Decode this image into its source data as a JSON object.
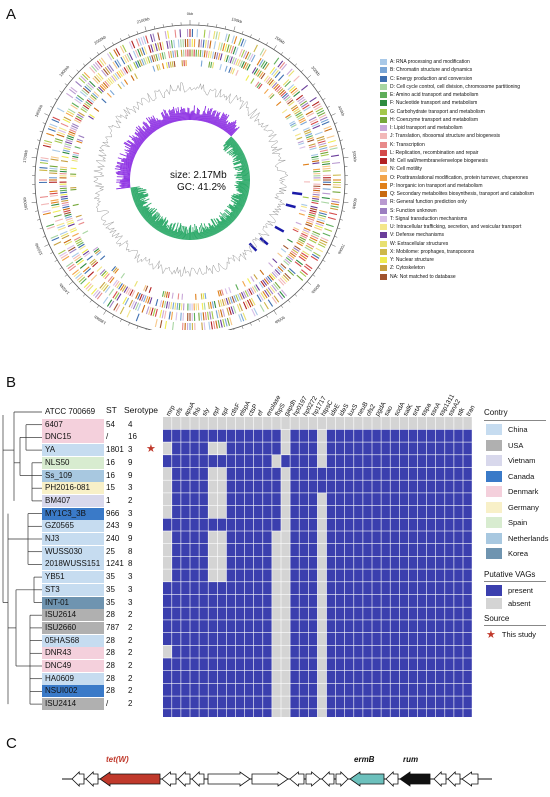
{
  "panels": {
    "a": "A",
    "b": "B",
    "c": "C"
  },
  "genome": {
    "size_text": "size: 2.17Mb",
    "gc_text": "GC: 41.2%",
    "outer_scale_labels": [
      "0kb",
      "100kb",
      "200kb",
      "300kb",
      "400kb",
      "500kb",
      "600kb",
      "700kb",
      "800kb",
      "900kb",
      "1000kb",
      "1100kb",
      "1200kb",
      "1300kb",
      "1400kb",
      "1500kb",
      "1600kb",
      "1700kb",
      "1800kb",
      "1900kb",
      "2000kb",
      "2100kb"
    ],
    "gc_skew_positive_color": "#8a2be2",
    "gc_skew_negative_color": "#2eaa6a"
  },
  "cog_legend": [
    {
      "label": "A: RNA processing and modification",
      "color": "#a9c9e8"
    },
    {
      "label": "B: Chromatin structure and dynamics",
      "color": "#7aa6d6"
    },
    {
      "label": "C: Energy production and conversion",
      "color": "#3e6fb0"
    },
    {
      "label": "D: Cell cycle control, cell division, chromosome partitioning",
      "color": "#a8d5a2"
    },
    {
      "label": "E: Amino acid transport and metabolism",
      "color": "#5fae5a"
    },
    {
      "label": "F: Nucleotide transport and metabolism",
      "color": "#2e8b3e"
    },
    {
      "label": "G: Carbohydrate transport and metabolism",
      "color": "#a4c84a"
    },
    {
      "label": "H: Coenzyme transport and metabolism",
      "color": "#76a83a"
    },
    {
      "label": "I: Lipid transport and metabolism",
      "color": "#c9a8d8"
    },
    {
      "label": "J: Translation, ribosomal structure and biogenesis",
      "color": "#f2b8b8"
    },
    {
      "label": "K: Transcription",
      "color": "#e88a8a"
    },
    {
      "label": "L: Replication, recombination and repair",
      "color": "#d44a4a"
    },
    {
      "label": "M: Cell wall/membrane/envelope biogenesis",
      "color": "#b22222"
    },
    {
      "label": "N: Cell motility",
      "color": "#f7c88a"
    },
    {
      "label": "O: Posttranslational modification, protein turnover, chaperones",
      "color": "#f2a44a"
    },
    {
      "label": "P: Inorganic ion transport and metabolism",
      "color": "#e0801a"
    },
    {
      "label": "Q: Secondary metabolites biosynthesis, transport and catabolism",
      "color": "#c96a10"
    },
    {
      "label": "R: General function prediction only",
      "color": "#b99ad0"
    },
    {
      "label": "S: Function unknown",
      "color": "#9b7dc0"
    },
    {
      "label": "T: Signal transduction mechanisms",
      "color": "#d8c0e8"
    },
    {
      "label": "U: Intracellular trafficking, secretion, and vesicular transport",
      "color": "#f4e68a"
    },
    {
      "label": "V: Defense mechanisms",
      "color": "#6a3d9a"
    },
    {
      "label": "W: Extracellular structures",
      "color": "#e8e070"
    },
    {
      "label": "X: Mobilome: prophages, transposons",
      "color": "#cdb84a"
    },
    {
      "label": "Y: Nuclear structure",
      "color": "#f0ec50"
    },
    {
      "label": "Z: Cytoskeleton",
      "color": "#c8a040"
    },
    {
      "label": "NA: Not matched to database",
      "color": "#a0522d"
    }
  ],
  "vag_table": {
    "headers": {
      "st": "ST",
      "serotype": "Serotype"
    },
    "genes": [
      "mrp",
      "ofs",
      "apuA",
      "fhb",
      "sly",
      "epf",
      "spl",
      "ctlsF",
      "elspA",
      "ctsP",
      "ef",
      "enolase",
      "fbpS",
      "gapdh",
      "hp0197",
      "hp0272",
      "hp1717",
      "htpsC",
      "ideE",
      "ideS",
      "luxS",
      "neuB",
      "ofs2",
      "pgdA",
      "sao",
      "sodA",
      "salK",
      "srtA",
      "sspa",
      "ssnA",
      "ssp1311",
      "ssnA2",
      "stk",
      "tran"
    ],
    "strains": [
      {
        "name": "ATCC 700669",
        "st": "",
        "serotype": "",
        "country": "",
        "star": false,
        "reference": true
      },
      {
        "name": "6407",
        "st": "54",
        "serotype": "4",
        "country": "Denmark",
        "star": false
      },
      {
        "name": "DNC15",
        "st": "/",
        "serotype": "16",
        "country": "Denmark",
        "star": false
      },
      {
        "name": "YA",
        "st": "1801",
        "serotype": "3",
        "country": "China",
        "star": true
      },
      {
        "name": "NLS50",
        "st": "16",
        "serotype": "9",
        "country": "Spain",
        "star": false
      },
      {
        "name": "Ss_109",
        "st": "16",
        "serotype": "9",
        "country": "Netherlands",
        "star": false
      },
      {
        "name": "PH2016-081",
        "st": "15",
        "serotype": "3",
        "country": "Germany",
        "star": false
      },
      {
        "name": "BM407",
        "st": "1",
        "serotype": "2",
        "country": "Vietnam",
        "star": false
      },
      {
        "name": "MY1C3_3B",
        "st": "966",
        "serotype": "3",
        "country": "Canada",
        "star": false
      },
      {
        "name": "GZ0565",
        "st": "243",
        "serotype": "9",
        "country": "China",
        "star": false
      },
      {
        "name": "NJ3",
        "st": "240",
        "serotype": "9",
        "country": "China",
        "star": false
      },
      {
        "name": "WUSS030",
        "st": "25",
        "serotype": "8",
        "country": "China",
        "star": false
      },
      {
        "name": "2018WUSS151",
        "st": "1241",
        "serotype": "8",
        "country": "China",
        "star": false
      },
      {
        "name": "YB51",
        "st": "35",
        "serotype": "3",
        "country": "China",
        "star": false
      },
      {
        "name": "ST3",
        "st": "35",
        "serotype": "3",
        "country": "China",
        "star": false
      },
      {
        "name": "INT-01",
        "st": "35",
        "serotype": "3",
        "country": "Korea",
        "star": false
      },
      {
        "name": "ISU2614",
        "st": "28",
        "serotype": "2",
        "country": "USA",
        "star": false
      },
      {
        "name": "ISU2660",
        "st": "787",
        "serotype": "2",
        "country": "USA",
        "star": false
      },
      {
        "name": "05HAS68",
        "st": "28",
        "serotype": "2",
        "country": "China",
        "star": false
      },
      {
        "name": "DNR43",
        "st": "28",
        "serotype": "2",
        "country": "Denmark",
        "star": false
      },
      {
        "name": "DNC49",
        "st": "28",
        "serotype": "2",
        "country": "Denmark",
        "star": false
      },
      {
        "name": "HA0609",
        "st": "28",
        "serotype": "2",
        "country": "China",
        "star": false
      },
      {
        "name": "NSUI002",
        "st": "28",
        "serotype": "2",
        "country": "Canada",
        "star": false
      },
      {
        "name": "ISU2414",
        "st": "/",
        "serotype": "2",
        "country": "USA",
        "star": false
      }
    ],
    "matrix": [
      "0000000000000000000000000000000000",
      "1111111111111011101111111111111111",
      "0111100111111011101111111111111111",
      "1111111111110111101111111111111111",
      "0111100111111011111111111111111111",
      "0111100111111011111111111111111111",
      "0111100111111011101111111111111111",
      "0111100111111011101111111111111111",
      "1111111111111011101111111111111111",
      "0111100111110011101111111111111111",
      "0111100111110011101111111111111111",
      "0111100111110011101111111111111111",
      "0111100111110011101111111111111111",
      "1111111111110011101111111111111111",
      "1111111111110011101111111111111111",
      "1111111111110011101111111111111111",
      "1111111111110011101111111111111111",
      "1111111111110011101111111111111111",
      "0111111111110011101111111111111111",
      "1111111111110011101111111111111111",
      "1111111111110011101111111111111111",
      "1111111111110011101111111111111111",
      "1111111111110011101111111111111111",
      "1111111111110011101111111111111111"
    ]
  },
  "legend": {
    "country_title": "Contry",
    "countries": [
      {
        "label": "China",
        "color": "#c6dcf0"
      },
      {
        "label": "USA",
        "color": "#b0b0b0"
      },
      {
        "label": "Vietnam",
        "color": "#d8d8ec"
      },
      {
        "label": "Canada",
        "color": "#3a7ac8"
      },
      {
        "label": "Denmark",
        "color": "#f4d0dc"
      },
      {
        "label": "Germany",
        "color": "#f8f0c8"
      },
      {
        "label": "Spain",
        "color": "#d8ecd0"
      },
      {
        "label": "Netherlands",
        "color": "#a8c8e0"
      },
      {
        "label": "Korea",
        "color": "#6f94b0"
      }
    ],
    "vag_title": "Putative VAGs",
    "vag_items": [
      {
        "label": "present",
        "color": "#3b3fae"
      },
      {
        "label": "absent",
        "color": "#d4d4d4"
      }
    ],
    "source_title": "Source",
    "source_item": "This study",
    "star_color": "#c0392b"
  },
  "gene_cluster": {
    "labels": {
      "tetw": "tet(W)",
      "ermb": "ermB",
      "rum": "rum"
    },
    "colors": {
      "tetw": "#c0392b",
      "ermb": "#6cc0bc",
      "rum": "#111111"
    }
  }
}
